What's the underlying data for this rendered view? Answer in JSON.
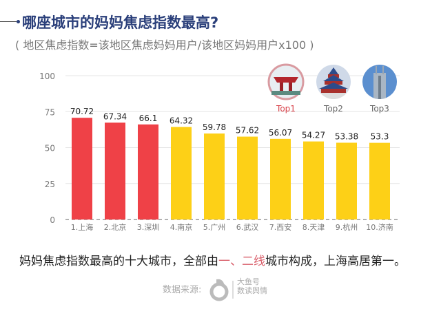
{
  "header": {
    "title": "哪座城市的妈妈焦虑指数最高?",
    "subtitle": "( 地区焦虑指数=该地区焦虑妈妈用户/该地区妈妈用户x100 )"
  },
  "top_badges": [
    {
      "label": "Top1",
      "icon": "shanghai-china-pavilion-icon"
    },
    {
      "label": "Top2",
      "icon": "beijing-temple-of-heaven-icon"
    },
    {
      "label": "Top3",
      "icon": "shenzhen-skyscraper-icon"
    }
  ],
  "chart_data": {
    "type": "bar",
    "categories": [
      "1.上海",
      "2.北京",
      "3.深圳",
      "4.南京",
      "5.广州",
      "6.武汉",
      "7.西安",
      "8.天津",
      "9.杭州",
      "10.济南"
    ],
    "values": [
      70.72,
      67.34,
      66.1,
      64.32,
      59.78,
      57.62,
      56.07,
      54.27,
      53.38,
      53.3
    ],
    "value_labels": [
      "70.72",
      "67.34",
      "66.1",
      "64.32",
      "59.78",
      "57.62",
      "56.07",
      "54.27",
      "53.38",
      "53.3"
    ],
    "ylim": [
      0,
      100
    ],
    "yticks": [
      "0",
      "25",
      "50",
      "75",
      "100"
    ],
    "grid": true,
    "colors": {
      "tier1": "#ef4147",
      "others": "#fdd017"
    },
    "tier1_count": 3
  },
  "caption": {
    "part1": "妈妈焦虑指数最高的十大城市，全部由",
    "hl1": "一、二线",
    "part2": "城市构成，上海高居第一。"
  },
  "footer": {
    "source_label": "数据来源:",
    "logo_text_1": "大鱼号",
    "logo_text_2": "数读舆情"
  }
}
